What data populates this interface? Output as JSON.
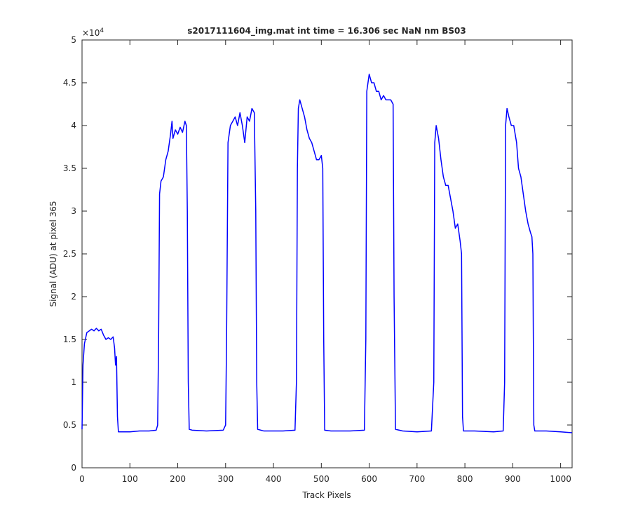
{
  "chart_data": {
    "type": "line",
    "title": "s2017111604_img.mat int time = 16.306 sec  NaN nm BS03",
    "x_label": "Track Pixels",
    "y_label": "Signal (ADU) at pixel 365",
    "y_multiplier": {
      "base": "×10",
      "exponent": "4"
    },
    "xlim": [
      0,
      1024
    ],
    "xticks": [
      0,
      100,
      200,
      300,
      400,
      500,
      600,
      700,
      800,
      900,
      1000
    ],
    "ylim": [
      0,
      5
    ],
    "yticks": [
      0,
      0.5,
      1,
      1.5,
      2,
      2.5,
      3,
      3.5,
      4,
      4.5,
      5
    ],
    "grid": false,
    "series": [
      {
        "name": "Signal",
        "color": "#0000ff",
        "x": [
          0,
          2,
          5,
          10,
          15,
          20,
          25,
          30,
          35,
          40,
          45,
          50,
          55,
          60,
          65,
          68,
          70,
          72,
          74,
          76,
          85,
          100,
          120,
          140,
          155,
          158,
          160,
          162,
          165,
          170,
          175,
          180,
          185,
          188,
          190,
          195,
          200,
          205,
          210,
          215,
          218,
          220,
          222,
          224,
          230,
          260,
          295,
          300,
          302,
          305,
          310,
          315,
          320,
          325,
          330,
          335,
          340,
          345,
          350,
          355,
          360,
          363,
          365,
          367,
          380,
          420,
          445,
          448,
          450,
          452,
          455,
          460,
          465,
          470,
          475,
          480,
          485,
          490,
          495,
          500,
          503,
          505,
          507,
          520,
          560,
          590,
          593,
          595,
          600,
          605,
          610,
          615,
          620,
          625,
          630,
          635,
          640,
          645,
          650,
          652,
          655,
          670,
          700,
          730,
          735,
          737,
          740,
          745,
          750,
          755,
          760,
          765,
          770,
          775,
          780,
          785,
          790,
          793,
          795,
          797,
          820,
          860,
          880,
          883,
          885,
          888,
          892,
          897,
          902,
          908,
          912,
          917,
          922,
          927,
          932,
          937,
          940,
          942,
          944,
          946,
          970,
          1000,
          1024
        ],
        "values": [
          0.45,
          1.2,
          1.45,
          1.58,
          1.6,
          1.62,
          1.6,
          1.63,
          1.6,
          1.62,
          1.55,
          1.5,
          1.52,
          1.5,
          1.53,
          1.4,
          1.2,
          1.3,
          0.6,
          0.42,
          0.42,
          0.42,
          0.43,
          0.43,
          0.44,
          0.5,
          1.5,
          3.2,
          3.35,
          3.4,
          3.6,
          3.7,
          3.9,
          4.05,
          3.85,
          3.95,
          3.9,
          3.98,
          3.92,
          4.05,
          4.0,
          3.0,
          1.0,
          0.45,
          0.44,
          0.43,
          0.44,
          0.5,
          1.5,
          3.8,
          4.0,
          4.05,
          4.1,
          4.0,
          4.15,
          4.0,
          3.8,
          4.1,
          4.05,
          4.2,
          4.15,
          3.0,
          1.0,
          0.45,
          0.43,
          0.43,
          0.44,
          1.0,
          3.5,
          4.2,
          4.3,
          4.2,
          4.1,
          3.95,
          3.85,
          3.8,
          3.7,
          3.6,
          3.6,
          3.65,
          3.5,
          1.5,
          0.44,
          0.43,
          0.43,
          0.44,
          1.5,
          4.4,
          4.6,
          4.5,
          4.5,
          4.4,
          4.4,
          4.3,
          4.35,
          4.3,
          4.3,
          4.3,
          4.25,
          2.0,
          0.45,
          0.43,
          0.42,
          0.43,
          1.0,
          3.8,
          4.0,
          3.85,
          3.6,
          3.4,
          3.3,
          3.3,
          3.15,
          3.0,
          2.8,
          2.85,
          2.65,
          2.5,
          0.6,
          0.43,
          0.43,
          0.42,
          0.43,
          1.0,
          4.0,
          4.2,
          4.1,
          4.0,
          4.0,
          3.8,
          3.5,
          3.4,
          3.2,
          3.0,
          2.85,
          2.75,
          2.7,
          2.5,
          0.5,
          0.43,
          0.43,
          0.42,
          0.41
        ]
      }
    ]
  }
}
